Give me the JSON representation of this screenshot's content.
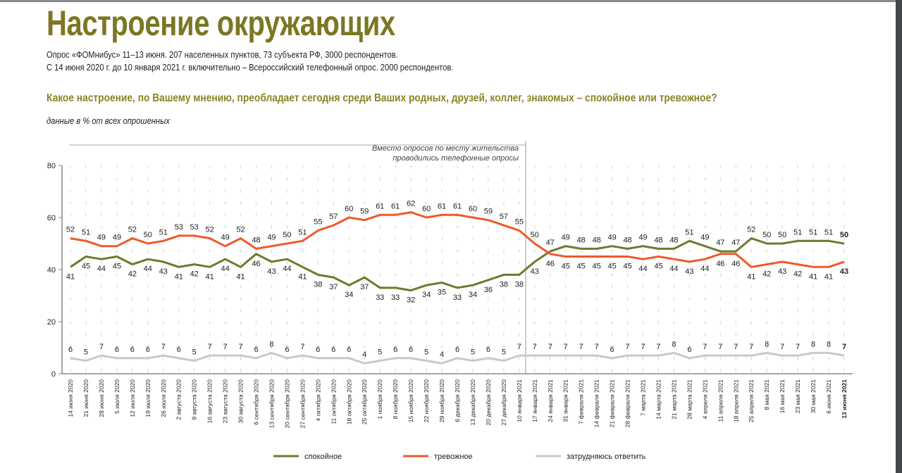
{
  "header": {
    "title": "Настроение окружающих",
    "subtitle_1": "Опрос «ФОМнибус» 11–13 июня. 207 населенных пунктов, 73 субъекта РФ, 3000 респондентов.",
    "subtitle_2": "С 14 июня 2020 г. до 10 января 2021 г. включительно – Всероссийский телефонный опрос. 2000 респондентов.",
    "question": "Какое настроение, по Вашему мнению, преобладает сегодня среди Ваших родных, друзей, коллег, знакомых – спокойное или тревожное?",
    "note": "данные в % от всех опрошенных"
  },
  "chart_data": {
    "type": "line",
    "annotation_1": "Вместо опросов по месту жительства",
    "annotation_2": "проводились телефонные опросы",
    "phone_survey_until": "10 января 2021",
    "ylim": [
      0,
      80
    ],
    "yticks": [
      0,
      20,
      40,
      60,
      80
    ],
    "legend_position": "bottom",
    "x": [
      "14 июня 2020",
      "21 июня 2020",
      "28 июня 2020",
      "5 июля 2020",
      "12 июля 2020",
      "19 июля 2020",
      "26 июля 2020",
      "2 августа 2020",
      "9 августа 2020",
      "16 августа 2020",
      "23 августа 2020",
      "30 августа 2020",
      "6 сентября 2020",
      "13 сентября 2020",
      "20 сентября 2020",
      "27 сентября 2020",
      "4 октября 2020",
      "11 октября 2020",
      "18 октября 2020",
      "25 октября 2020",
      "1 ноября 2020",
      "8 ноября 2020",
      "15 ноября 2020",
      "22 ноября 2020",
      "29 ноября 2020",
      "6 декабря 2020",
      "13 декабря 2020",
      "20 декабря 2020",
      "27 декабря 2020",
      "10 января 2021",
      "17 января 2021",
      "24 января 2021",
      "31 января 2021",
      "7 февраля 2021",
      "14 февраля 2021",
      "21 февраля 2021",
      "28 февраля 2021",
      "7 марта 2021",
      "14 марта 2021",
      "21 марта 2021",
      "28 марта 2021",
      "4 апреля 2021",
      "11 апреля 2021",
      "18 апреля 2021",
      "25 апреля 2021",
      "8 мая 2021",
      "16 мая 2021",
      "23 мая 2021",
      "30 мая 2021",
      "6 июня 2021",
      "13 июня 2021"
    ],
    "series": [
      {
        "name": "спокойное",
        "color": "#6e7a2c",
        "values": [
          41,
          45,
          44,
          45,
          42,
          44,
          43,
          41,
          42,
          41,
          44,
          41,
          46,
          43,
          44,
          41,
          38,
          37,
          34,
          37,
          33,
          33,
          32,
          34,
          35,
          33,
          34,
          36,
          38,
          38,
          43,
          47,
          49,
          48,
          48,
          49,
          48,
          49,
          48,
          48,
          51,
          49,
          47,
          47,
          52,
          50,
          50,
          51,
          51,
          51,
          50
        ]
      },
      {
        "name": "тревожное",
        "color": "#ee5a2a",
        "values": [
          52,
          51,
          49,
          49,
          52,
          50,
          51,
          53,
          53,
          52,
          49,
          52,
          48,
          49,
          50,
          51,
          55,
          57,
          60,
          59,
          61,
          61,
          62,
          60,
          61,
          61,
          60,
          59,
          57,
          55,
          50,
          46,
          45,
          45,
          45,
          45,
          45,
          44,
          45,
          44,
          43,
          44,
          46,
          46,
          41,
          42,
          43,
          42,
          41,
          41,
          43
        ]
      },
      {
        "name": "затрудняюсь ответить",
        "color": "#c9c9c9",
        "values": [
          6,
          5,
          7,
          6,
          6,
          6,
          7,
          6,
          5,
          7,
          7,
          7,
          6,
          8,
          6,
          7,
          6,
          6,
          6,
          4,
          5,
          6,
          6,
          5,
          4,
          6,
          5,
          6,
          5,
          7,
          7,
          7,
          7,
          7,
          7,
          6,
          7,
          7,
          7,
          8,
          6,
          7,
          7,
          7,
          7,
          8,
          7,
          7,
          8,
          8,
          7
        ]
      }
    ]
  }
}
